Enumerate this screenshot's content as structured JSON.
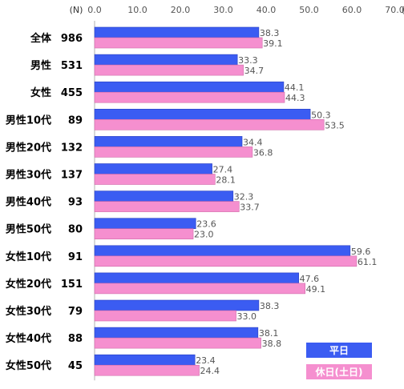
{
  "chart_data": {
    "type": "bar",
    "orientation": "horizontal",
    "n_header": "(N)",
    "unit_label": "(分)",
    "xlim": [
      0,
      70
    ],
    "x_ticks": [
      "0.0",
      "10.0",
      "20.0",
      "30.0",
      "40.0",
      "50.0",
      "60.0",
      "70.0"
    ],
    "grid": false,
    "legend_position": "bottom-right",
    "categories": [
      "全体",
      "男性",
      "女性",
      "男性10代",
      "男性20代",
      "男性30代",
      "男性40代",
      "男性50代",
      "女性10代",
      "女性20代",
      "女性30代",
      "女性40代",
      "女性50代"
    ],
    "n_values": [
      "986",
      "531",
      "455",
      "89",
      "132",
      "137",
      "93",
      "80",
      "91",
      "151",
      "79",
      "88",
      "45"
    ],
    "series": [
      {
        "name": "平日",
        "color": "#3b5cf2",
        "values": [
          38.3,
          33.3,
          44.1,
          50.3,
          34.4,
          27.4,
          32.3,
          23.6,
          59.6,
          47.6,
          38.3,
          38.1,
          23.4
        ],
        "labels": [
          "38.3",
          "33.3",
          "44.1",
          "50.3",
          "34.4",
          "27.4",
          "32.3",
          "23.6",
          "59.6",
          "47.6",
          "38.3",
          "38.1",
          "23.4"
        ]
      },
      {
        "name": "休日(土日)",
        "color": "#f58fcf",
        "values": [
          39.1,
          34.7,
          44.3,
          53.5,
          36.8,
          28.1,
          33.7,
          23.0,
          61.1,
          49.1,
          33.0,
          38.8,
          24.4
        ],
        "labels": [
          "39.1",
          "34.7",
          "44.3",
          "53.5",
          "36.8",
          "28.1",
          "33.7",
          "23.0",
          "61.1",
          "49.1",
          "33.0",
          "38.8",
          "24.4"
        ]
      }
    ]
  }
}
